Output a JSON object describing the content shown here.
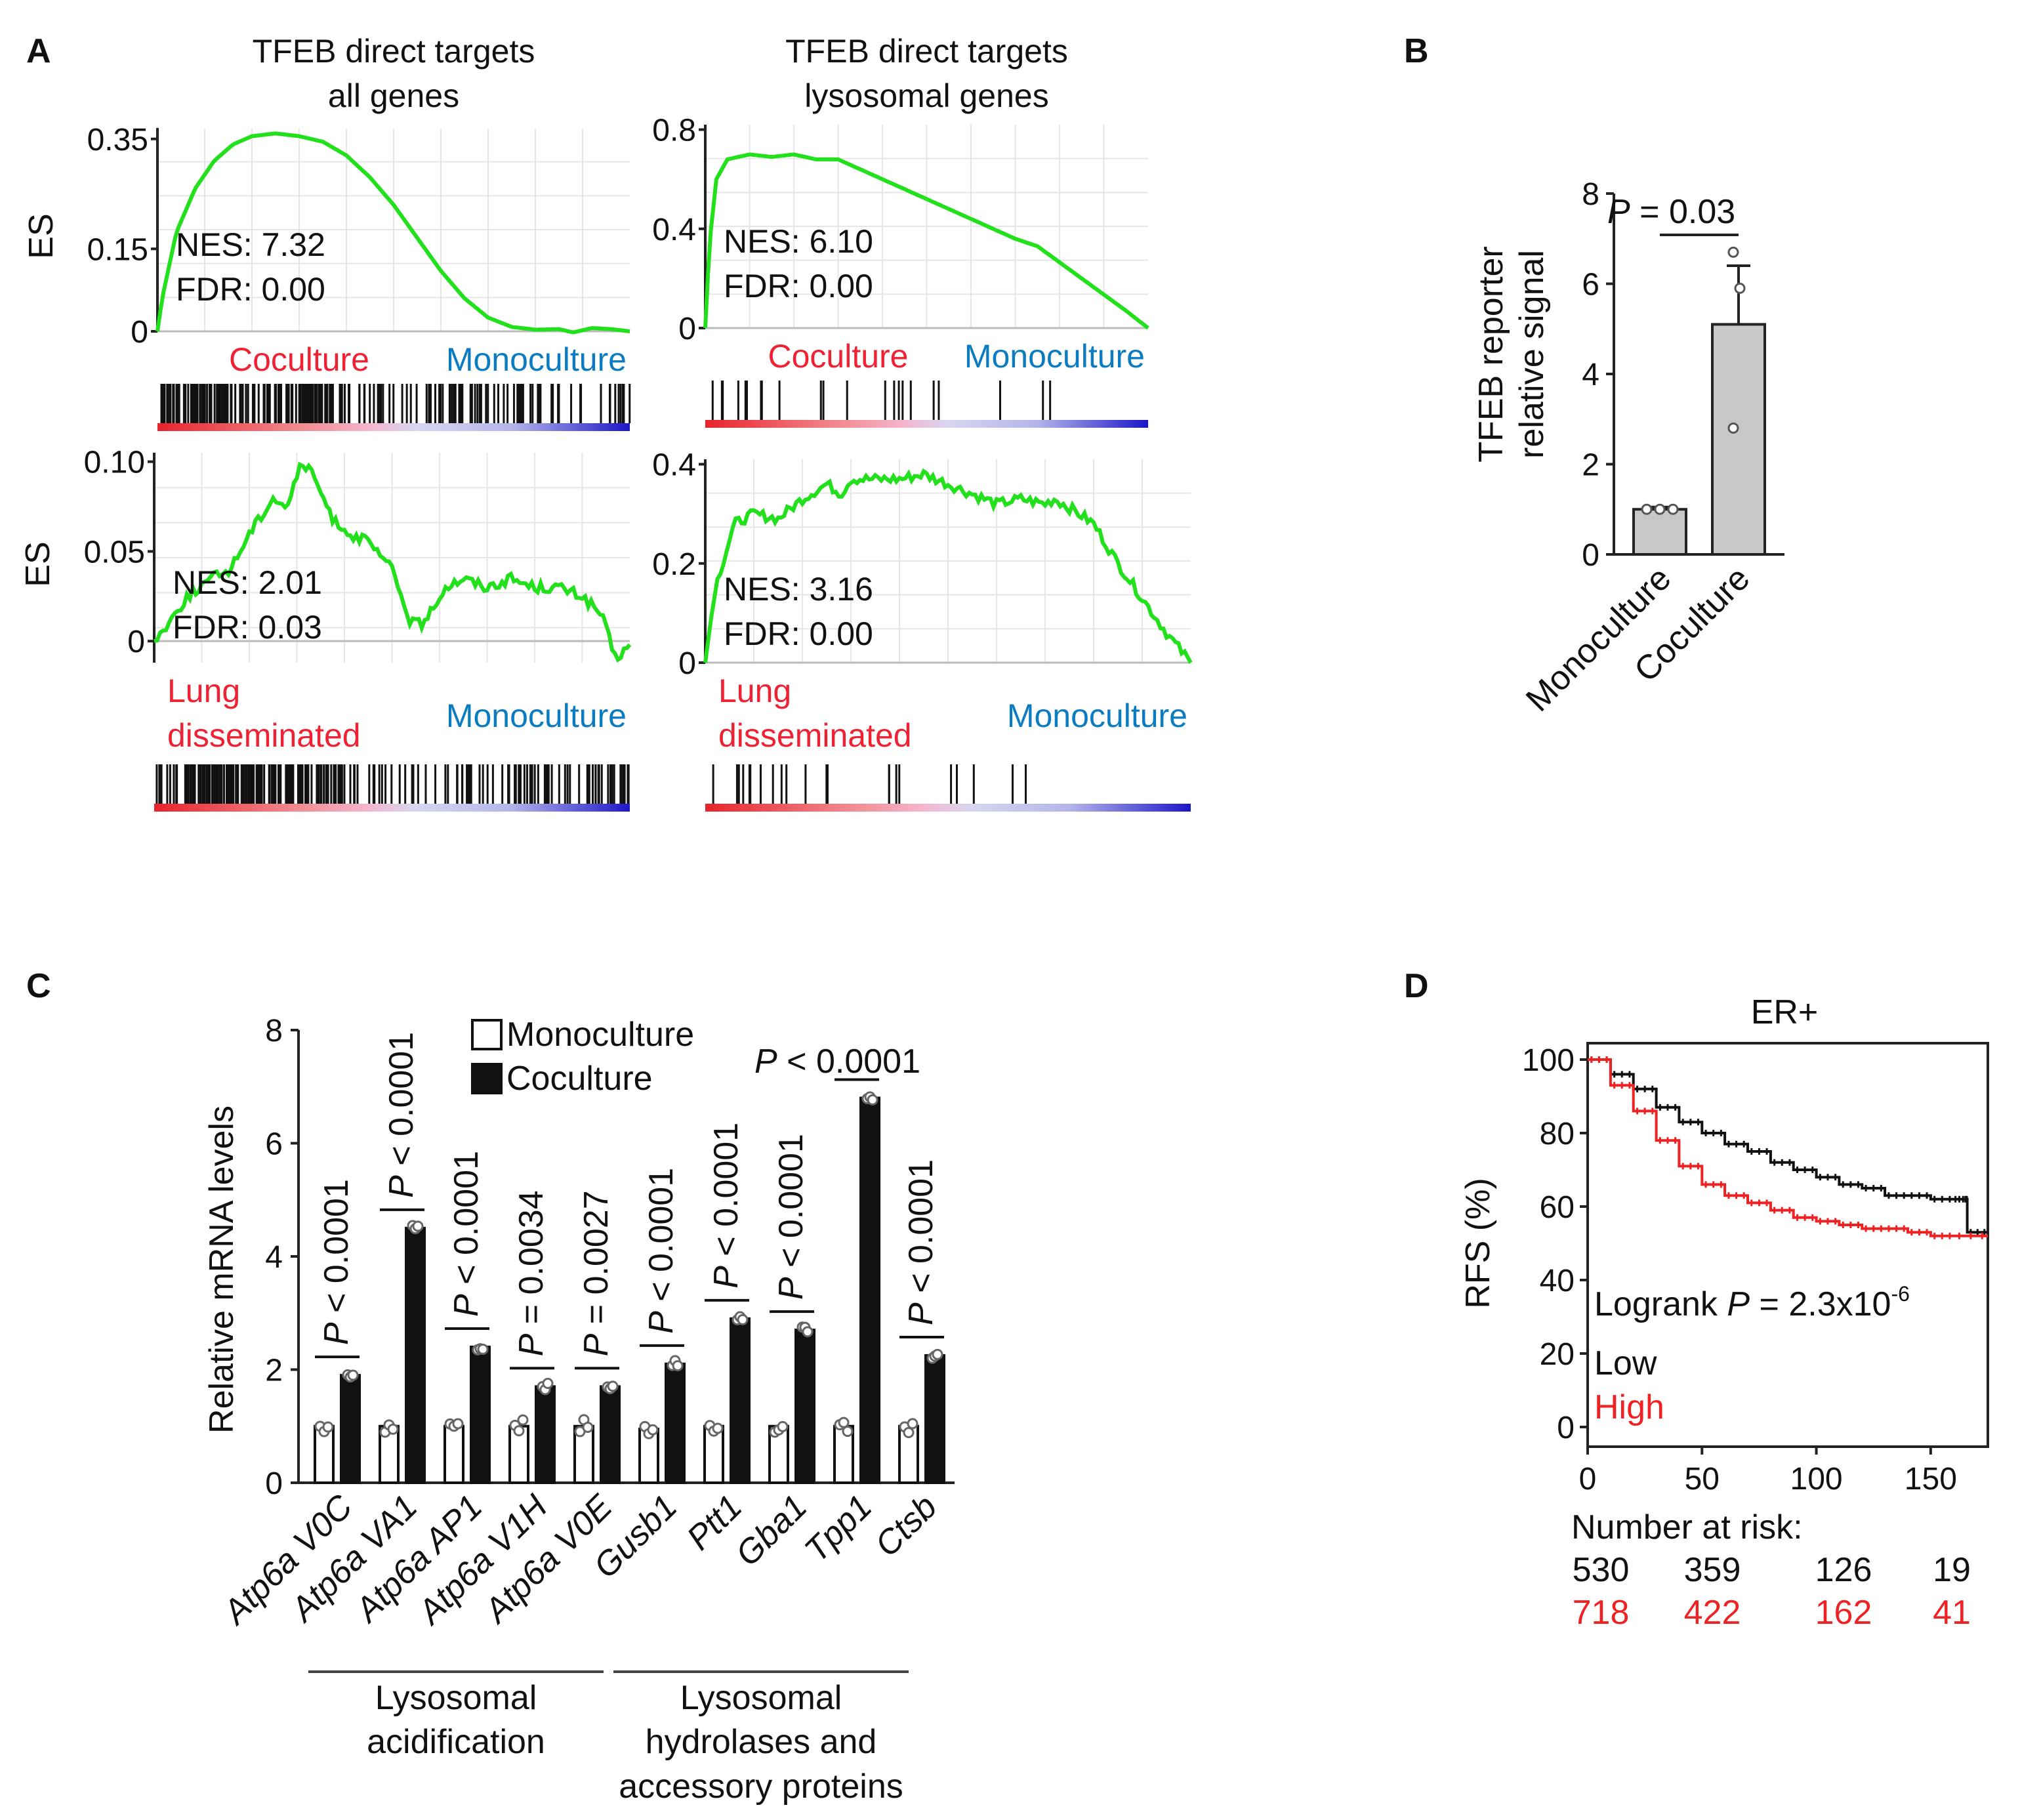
{
  "colors": {
    "es_curve": "#22e01b",
    "up_label": "#ee2233",
    "down_label": "#0b7cc2",
    "high_curve": "#ee2222",
    "low_curve": "#111111",
    "bar_gray": "#c8c8c8",
    "bar_black": "#111111"
  },
  "panel_A": {
    "letter": "A",
    "plots": [
      {
        "title": [
          "TFEB direct targets",
          "all genes"
        ],
        "ylabel": "ES",
        "yticks": [
          "0",
          "0.15",
          "0.35"
        ],
        "ytick_values": [
          0,
          0.15,
          0.35
        ],
        "ylim": [
          0,
          0.37
        ],
        "nes": "NES: 7.32",
        "fdr": "FDR: 0.00",
        "up_label": [
          "Coculture"
        ],
        "down_label": "Monoculture",
        "curve": [
          [
            0,
            0
          ],
          [
            0.01,
            0.06
          ],
          [
            0.04,
            0.18
          ],
          [
            0.08,
            0.26
          ],
          [
            0.12,
            0.31
          ],
          [
            0.16,
            0.34
          ],
          [
            0.2,
            0.355
          ],
          [
            0.25,
            0.36
          ],
          [
            0.3,
            0.355
          ],
          [
            0.35,
            0.345
          ],
          [
            0.4,
            0.32
          ],
          [
            0.45,
            0.28
          ],
          [
            0.5,
            0.23
          ],
          [
            0.55,
            0.17
          ],
          [
            0.6,
            0.11
          ],
          [
            0.65,
            0.06
          ],
          [
            0.7,
            0.025
          ],
          [
            0.75,
            0.008
          ],
          [
            0.8,
            0.003
          ],
          [
            0.85,
            0.004
          ],
          [
            0.88,
            -0.002
          ],
          [
            0.92,
            0.006
          ],
          [
            0.96,
            0.004
          ],
          [
            1,
            0
          ]
        ]
      },
      {
        "title": [
          "TFEB direct targets",
          "lysosomal genes"
        ],
        "ylabel": "",
        "yticks": [
          "0",
          "0.4",
          "0.8"
        ],
        "ytick_values": [
          0,
          0.4,
          0.8
        ],
        "ylim": [
          0,
          0.82
        ],
        "nes": "NES: 6.10",
        "fdr": "FDR: 0.00",
        "up_label": [
          "Coculture"
        ],
        "down_label": "Monoculture",
        "curve": [
          [
            0,
            0
          ],
          [
            0.01,
            0.35
          ],
          [
            0.025,
            0.6
          ],
          [
            0.05,
            0.68
          ],
          [
            0.1,
            0.7
          ],
          [
            0.15,
            0.69
          ],
          [
            0.2,
            0.7
          ],
          [
            0.25,
            0.68
          ],
          [
            0.3,
            0.68
          ],
          [
            0.35,
            0.64
          ],
          [
            0.45,
            0.56
          ],
          [
            0.55,
            0.48
          ],
          [
            0.65,
            0.4
          ],
          [
            0.7,
            0.36
          ],
          [
            0.75,
            0.33
          ],
          [
            0.85,
            0.2
          ],
          [
            0.95,
            0.07
          ],
          [
            1,
            0
          ]
        ]
      },
      {
        "title": [],
        "ylabel": "ES",
        "yticks": [
          "0",
          "0.05",
          "0.10"
        ],
        "ytick_values": [
          0,
          0.05,
          0.1
        ],
        "ylim": [
          -0.012,
          0.105
        ],
        "nes": "NES: 2.01",
        "fdr": "FDR: 0.03",
        "up_label": [
          "Lung",
          "disseminated"
        ],
        "down_label": "Monoculture",
        "curve": [
          [
            0,
            0
          ],
          [
            0.03,
            0.01
          ],
          [
            0.07,
            0.025
          ],
          [
            0.12,
            0.035
          ],
          [
            0.16,
            0.04
          ],
          [
            0.2,
            0.06
          ],
          [
            0.25,
            0.08
          ],
          [
            0.28,
            0.075
          ],
          [
            0.31,
            0.1
          ],
          [
            0.34,
            0.09
          ],
          [
            0.37,
            0.07
          ],
          [
            0.41,
            0.06
          ],
          [
            0.45,
            0.055
          ],
          [
            0.5,
            0.04
          ],
          [
            0.54,
            0.01
          ],
          [
            0.57,
            0.01
          ],
          [
            0.61,
            0.03
          ],
          [
            0.65,
            0.035
          ],
          [
            0.7,
            0.03
          ],
          [
            0.75,
            0.035
          ],
          [
            0.8,
            0.03
          ],
          [
            0.85,
            0.03
          ],
          [
            0.9,
            0.025
          ],
          [
            0.94,
            0.015
          ],
          [
            0.97,
            -0.01
          ],
          [
            1,
            -0.002
          ]
        ]
      },
      {
        "title": [],
        "ylabel": "",
        "yticks": [
          "0",
          "0.2",
          "0.4"
        ],
        "ytick_values": [
          0,
          0.2,
          0.4
        ],
        "ylim": [
          0,
          0.41
        ],
        "nes": "NES: 3.16",
        "fdr": "FDR: 0.00",
        "up_label": [
          "Lung",
          "disseminated"
        ],
        "down_label": "Monoculture",
        "curve": [
          [
            0,
            0
          ],
          [
            0.02,
            0.15
          ],
          [
            0.06,
            0.28
          ],
          [
            0.1,
            0.3
          ],
          [
            0.15,
            0.29
          ],
          [
            0.2,
            0.33
          ],
          [
            0.25,
            0.36
          ],
          [
            0.28,
            0.34
          ],
          [
            0.3,
            0.37
          ],
          [
            0.35,
            0.37
          ],
          [
            0.4,
            0.37
          ],
          [
            0.45,
            0.38
          ],
          [
            0.5,
            0.36
          ],
          [
            0.55,
            0.34
          ],
          [
            0.6,
            0.32
          ],
          [
            0.65,
            0.33
          ],
          [
            0.7,
            0.32
          ],
          [
            0.72,
            0.33
          ],
          [
            0.77,
            0.3
          ],
          [
            0.8,
            0.28
          ],
          [
            0.85,
            0.2
          ],
          [
            0.9,
            0.13
          ],
          [
            0.95,
            0.06
          ],
          [
            1,
            0
          ]
        ]
      }
    ]
  },
  "panel_B": {
    "letter": "B",
    "ylabel": [
      "TFEB reporter",
      "relative signal"
    ],
    "yticks": [
      "0",
      "2",
      "4",
      "6",
      "8"
    ],
    "ytick_values": [
      0,
      2,
      4,
      6,
      8
    ],
    "ylim": [
      0,
      8
    ],
    "pvalue_prefix": "P",
    "pvalue_suffix": " = 0.03",
    "chart_data": {
      "type": "bar",
      "categories": [
        "Monoculture",
        "Coculture"
      ],
      "values": [
        1.0,
        5.1
      ],
      "errors": [
        0.05,
        1.3
      ],
      "points": [
        [
          1.0,
          1.0,
          1.0
        ],
        [
          2.8,
          5.9,
          6.7
        ]
      ]
    }
  },
  "panel_C": {
    "letter": "C",
    "ylabel": "Relative mRNA levels",
    "yticks": [
      "0",
      "2",
      "4",
      "6",
      "8"
    ],
    "ytick_values": [
      0,
      2,
      4,
      6,
      8
    ],
    "ylim": [
      0,
      8
    ],
    "legend": [
      "Monoculture",
      "Coculture"
    ],
    "top_p_prefix": "P",
    "top_p_suffix": " < 0.0001",
    "groups": [
      {
        "label": "Lysosomal",
        "label2": "acidification"
      },
      {
        "label": "Lysosomal",
        "label2": "hydrolases and",
        "label3": "accessory proteins"
      }
    ],
    "chart_data": {
      "type": "bar",
      "categories": [
        "Atp6a V0C",
        "Atp6a VA1",
        "Atp6a AP1",
        "Atp6a V1H",
        "Atp6a V0E",
        "Gusb1",
        "Ptt1",
        "Gba1",
        "Tpp1",
        "Ctsb"
      ],
      "series": [
        {
          "name": "Monoculture",
          "values": [
            1.0,
            1.0,
            1.0,
            1.0,
            1.0,
            0.95,
            1.0,
            1.0,
            1.0,
            1.0
          ]
        },
        {
          "name": "Coculture",
          "values": [
            1.9,
            4.5,
            2.4,
            1.7,
            1.7,
            2.1,
            2.9,
            2.7,
            6.8,
            2.25
          ]
        }
      ],
      "pvalues": [
        "P < 0.0001",
        "P < 0.0001",
        "P < 0.0001",
        "P = 0.0034",
        "P = 0.0027",
        "P < 0.0001",
        "P < 0.0001",
        "P < 0.0001",
        "P < 0.0001",
        "P < 0.0001"
      ],
      "pvalue_rest": [
        " < 0.0001",
        " < 0.0001",
        " < 0.0001",
        " = 0.0034",
        " = 0.0027",
        " < 0.0001",
        " < 0.0001",
        " < 0.0001",
        "",
        " < 0.0001"
      ]
    }
  },
  "panel_D": {
    "letter": "D",
    "title": "ER+",
    "ylabel": "RFS (%)",
    "yticks": [
      "0",
      "20",
      "40",
      "60",
      "80",
      "100"
    ],
    "ytick_values": [
      0,
      20,
      40,
      60,
      80,
      100
    ],
    "xticks": [
      "0",
      "50",
      "100",
      "150"
    ],
    "xtick_values": [
      0,
      50,
      100,
      150
    ],
    "xlim": [
      0,
      175
    ],
    "ylim": [
      0,
      100
    ],
    "logrank_prefix": "Logrank ",
    "logrank_p": "P",
    "logrank_value": " = 2.3x10",
    "logrank_exp": "-6",
    "legend_low": "Low",
    "legend_high": "High",
    "risk_title": "Number at risk:",
    "risk_low": [
      "530",
      "359",
      "126",
      "19"
    ],
    "risk_high": [
      "718",
      "422",
      "162",
      "41"
    ],
    "chart_data": {
      "type": "line",
      "series": [
        {
          "name": "Low",
          "x": [
            0,
            10,
            20,
            30,
            40,
            50,
            60,
            70,
            80,
            90,
            100,
            110,
            120,
            130,
            140,
            150,
            160,
            165,
            166,
            175
          ],
          "y": [
            100,
            96,
            92,
            87,
            83,
            80,
            77,
            75,
            72,
            70,
            68,
            66,
            65,
            63,
            63,
            62,
            62,
            62,
            53,
            53
          ]
        },
        {
          "name": "High",
          "x": [
            0,
            10,
            20,
            30,
            40,
            50,
            60,
            70,
            80,
            90,
            100,
            110,
            120,
            130,
            140,
            150,
            160,
            175
          ],
          "y": [
            100,
            93,
            86,
            78,
            71,
            66,
            63,
            61,
            59,
            57,
            56,
            55,
            54,
            54,
            53,
            52,
            52,
            52
          ]
        }
      ]
    }
  }
}
